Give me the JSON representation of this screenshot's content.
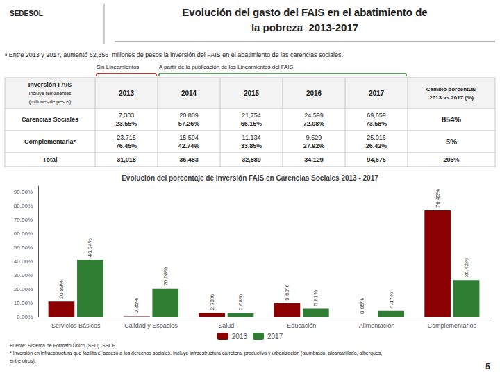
{
  "chart_data": {
    "type": "bar",
    "title": "Evolución del porcentaje de Inversión FAIS en Carencias Sociales 2013 - 2017",
    "annotations": {
      "header": [
        "SEDESOL",
        "Evolución del gasto del FAIS en el abatimiento de",
        "la pobreza  2013-2017"
      ],
      "bullet": "• Entre 2013 y 2017, aumentó 62,356  millones de pesos la inversión del FAIS en el abatimiento de las carencias sociales.",
      "timeline": [
        "Sin Lineamientos",
        "A partir de la publicación de los Lineamientos del FAIS"
      ],
      "table": {
        "columns": [
          [
            "Inversión FAIS",
            "Incluye remanentes",
            "(millones de pesos)"
          ],
          [
            "2013"
          ],
          [
            "2014"
          ],
          [
            "2015"
          ],
          [
            "2016"
          ],
          [
            "2017"
          ],
          [
            "Cambio porcentual",
            "2013 vs 2017 (%)"
          ]
        ],
        "rows": [
          [
            [
              "Carencias Sociales"
            ],
            [
              "7,303",
              "23.55%"
            ],
            [
              "20,889",
              "57.26%"
            ],
            [
              "21,754",
              "66.15%"
            ],
            [
              "24,599",
              "72.08%"
            ],
            [
              "69,659",
              "73.58%"
            ],
            [
              "854%"
            ]
          ],
          [
            [
              "Complementaria*"
            ],
            [
              "23,715",
              "76.45%"
            ],
            [
              "15,594",
              "42.74%"
            ],
            [
              "11,134",
              "33.85%"
            ],
            [
              "9,529",
              "27.92%"
            ],
            [
              "25,016",
              "26.42%"
            ],
            [
              "5%"
            ]
          ],
          [
            [
              "Total"
            ],
            [
              "31,018"
            ],
            [
              "36,483"
            ],
            [
              "32,889"
            ],
            [
              "34,129"
            ],
            [
              "94,675"
            ],
            [
              "205%"
            ]
          ]
        ]
      },
      "footer": [
        "Fuente: Sistema de Formato Único (SFU). SHCP.",
        "* Inversión en infraestructura que facilita el acceso a los derechos sociales. Incluye infraestructura carretera, productiva y urbanización (alumbrado, alcantarillado, albergues,",
        "entre otros)."
      ],
      "page": "5"
    },
    "categories": [
      "Servicios Básicos",
      "Calidad y Espacios",
      "Salud",
      "Educación",
      "Alimentación",
      "Complementarios"
    ],
    "series": [
      {
        "name": "2013",
        "color": "#8B0000",
        "values": [
          10.83,
          0.25,
          2.73,
          9.68,
          0.05,
          76.45
        ],
        "value_labels": [
          "10.83%",
          "0.25%",
          "2.73%",
          "9.68%",
          "0.05%",
          "76.45%"
        ]
      },
      {
        "name": "2017",
        "color": "#2E7D32",
        "values": [
          40.84,
          20.08,
          2.68,
          5.81,
          4.17,
          26.42
        ],
        "value_labels": [
          "40.84%",
          "20.08%",
          "2.68%",
          "5.81%",
          "4.17%",
          "26.42%"
        ]
      }
    ],
    "ylim": [
      0,
      94
    ],
    "yticks": [
      {
        "value": 0,
        "label": "0.00%"
      },
      {
        "value": 10,
        "label": "10.00%"
      },
      {
        "value": 20,
        "label": "20.00%"
      },
      {
        "value": 30,
        "label": "30.00%"
      },
      {
        "value": 40,
        "label": "40.00%"
      },
      {
        "value": 50,
        "label": "50.00%"
      },
      {
        "value": 60,
        "label": "60.00%"
      },
      {
        "value": 70,
        "label": "70.00%"
      },
      {
        "value": 80,
        "label": "80.00%"
      },
      {
        "value": 90,
        "label": "90.00%"
      }
    ],
    "grid": false,
    "legend": "bottom",
    "data_labels": true
  }
}
